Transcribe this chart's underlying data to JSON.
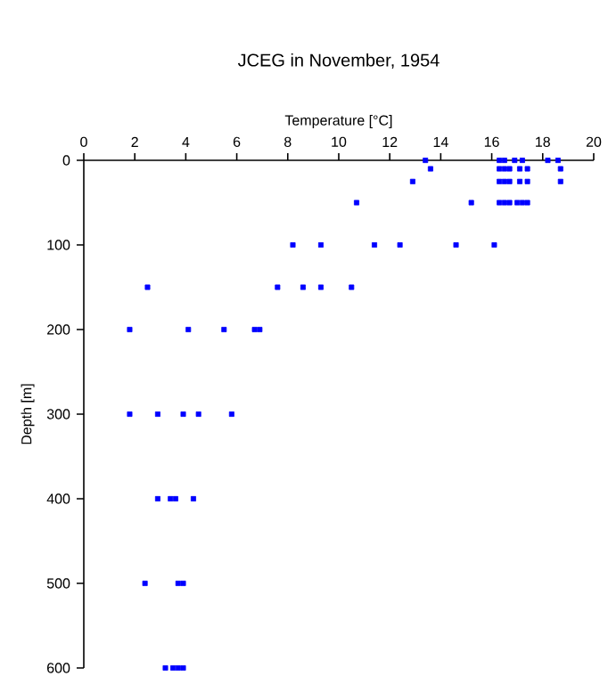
{
  "chart_data": {
    "type": "scatter",
    "title": "JCEG in November, 1954",
    "xlabel": "Temperature [°C]",
    "ylabel": "Depth [m]",
    "x": [
      13.4,
      16.3,
      16.5,
      16.9,
      17.2,
      18.2,
      18.6,
      13.6,
      16.3,
      16.5,
      16.7,
      17.1,
      17.4,
      18.7,
      12.9,
      16.3,
      16.5,
      16.7,
      17.1,
      17.4,
      18.7,
      10.7,
      15.2,
      16.3,
      16.5,
      16.7,
      17.0,
      17.2,
      17.4,
      8.2,
      9.3,
      11.4,
      12.4,
      14.6,
      16.1,
      2.5,
      7.6,
      8.6,
      9.3,
      10.5,
      1.8,
      4.1,
      5.5,
      6.7,
      6.9,
      1.8,
      2.9,
      3.9,
      4.5,
      5.8,
      2.9,
      3.4,
      3.6,
      4.3,
      2.4,
      3.7,
      3.9,
      3.2,
      3.5,
      3.7,
      3.9
    ],
    "values": [
      0,
      0,
      0,
      0,
      0,
      0,
      0,
      10,
      10,
      10,
      10,
      10,
      10,
      10,
      25,
      25,
      25,
      25,
      25,
      25,
      25,
      50,
      50,
      50,
      50,
      50,
      50,
      50,
      50,
      100,
      100,
      100,
      100,
      100,
      100,
      150,
      150,
      150,
      150,
      150,
      200,
      200,
      200,
      200,
      200,
      300,
      300,
      300,
      300,
      300,
      400,
      400,
      400,
      400,
      500,
      500,
      500,
      600,
      600,
      600,
      600
    ],
    "color": "#0000ff",
    "marker": "square",
    "xlim": [
      0,
      20
    ],
    "xticks": [
      0,
      2,
      4,
      6,
      8,
      10,
      12,
      14,
      16,
      18,
      20
    ],
    "ylim": [
      600,
      0
    ],
    "yticks": [
      0,
      100,
      200,
      300,
      400,
      500,
      600
    ]
  }
}
